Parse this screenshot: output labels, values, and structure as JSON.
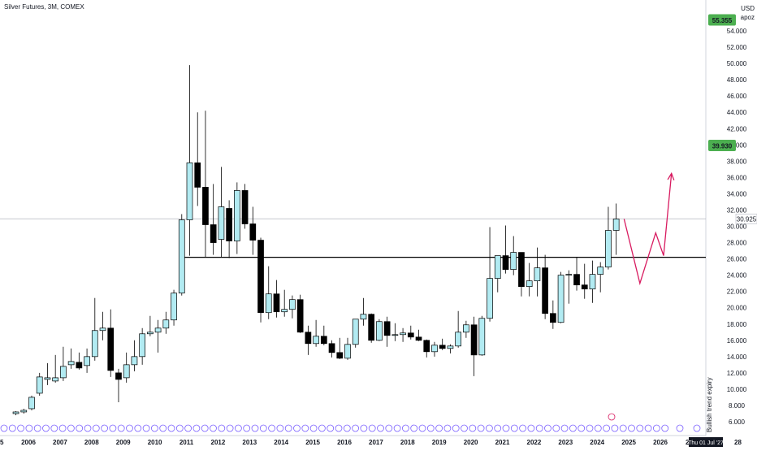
{
  "header": {
    "title": "Silver Futures, 3M, COMEX"
  },
  "currency": {
    "code": "USD",
    "label": "apoz"
  },
  "price_badges": {
    "top": "55.355",
    "mid": "39.930",
    "last": "30.925"
  },
  "colors": {
    "up_fill": "#b2ebf2",
    "down_fill": "#000000",
    "badge": "#4caf50",
    "projection": "#d81b60",
    "level": "#000000",
    "last_line": "#b2b5be"
  },
  "chart_data": {
    "type": "candlestick",
    "title": "Silver Futures, 3M, COMEX",
    "ylim": [
      5.5,
      56.5
    ],
    "y_ticks": [
      6,
      8,
      10,
      12,
      14,
      16,
      18,
      20,
      22,
      24,
      26,
      28,
      30,
      32,
      34,
      36,
      38,
      40,
      42,
      44,
      46,
      48,
      50,
      52,
      54
    ],
    "y_tick_labels": [
      "6.000",
      "8.000",
      "10.000",
      "12.000",
      "14.000",
      "16.000",
      "18.000",
      "20.000",
      "22.000",
      "24.000",
      "26.000",
      "28.000",
      "30.000",
      "32.000",
      "34.000",
      "36.000",
      "38.000",
      "40.000",
      "42.000",
      "44.000",
      "46.000",
      "48.000",
      "50.000",
      "52.000",
      "54.000"
    ],
    "x_ticks": [
      {
        "label": "2006",
        "year": 2006
      },
      {
        "label": "2007",
        "year": 2007
      },
      {
        "label": "2008",
        "year": 2008
      },
      {
        "label": "2009",
        "year": 2009
      },
      {
        "label": "2010",
        "year": 2010
      },
      {
        "label": "2011",
        "year": 2011
      },
      {
        "label": "2012",
        "year": 2012
      },
      {
        "label": "2013",
        "year": 2013
      },
      {
        "label": "2014",
        "year": 2014
      },
      {
        "label": "2015",
        "year": 2015
      },
      {
        "label": "2016",
        "year": 2016
      },
      {
        "label": "2017",
        "year": 2017
      },
      {
        "label": "2018",
        "year": 2018
      },
      {
        "label": "2019",
        "year": 2019
      },
      {
        "label": "2020",
        "year": 2020
      },
      {
        "label": "2021",
        "year": 2021
      },
      {
        "label": "2022",
        "year": 2022
      },
      {
        "label": "2023",
        "year": 2023
      },
      {
        "label": "2024",
        "year": 2024
      },
      {
        "label": "2025",
        "year": 2025
      },
      {
        "label": "2026",
        "year": 2026
      }
    ],
    "candles": [
      {
        "date": "2005-07",
        "o": 7.0,
        "h": 7.3,
        "l": 6.8,
        "c": 7.2
      },
      {
        "date": "2005-10",
        "o": 7.2,
        "h": 7.6,
        "l": 7.0,
        "c": 7.4
      },
      {
        "date": "2006-01",
        "o": 7.6,
        "h": 9.2,
        "l": 7.4,
        "c": 9.0
      },
      {
        "date": "2006-04",
        "o": 9.5,
        "h": 12.0,
        "l": 9.2,
        "c": 11.5
      },
      {
        "date": "2006-07",
        "o": 11.2,
        "h": 13.2,
        "l": 10.5,
        "c": 11.4
      },
      {
        "date": "2006-10",
        "o": 11.0,
        "h": 14.2,
        "l": 10.8,
        "c": 11.4
      },
      {
        "date": "2007-01",
        "o": 11.4,
        "h": 15.2,
        "l": 11.0,
        "c": 12.8
      },
      {
        "date": "2007-04",
        "o": 13.0,
        "h": 15.0,
        "l": 12.5,
        "c": 13.4
      },
      {
        "date": "2007-07",
        "o": 13.3,
        "h": 14.5,
        "l": 12.4,
        "c": 12.6
      },
      {
        "date": "2007-10",
        "o": 12.9,
        "h": 15.0,
        "l": 12.0,
        "c": 14.0
      },
      {
        "date": "2008-01",
        "o": 14.0,
        "h": 21.2,
        "l": 13.5,
        "c": 17.2
      },
      {
        "date": "2008-04",
        "o": 17.2,
        "h": 19.5,
        "l": 16.0,
        "c": 17.5
      },
      {
        "date": "2008-07",
        "o": 17.5,
        "h": 19.8,
        "l": 11.5,
        "c": 12.3
      },
      {
        "date": "2008-10",
        "o": 12.0,
        "h": 12.5,
        "l": 8.4,
        "c": 11.2
      },
      {
        "date": "2009-01",
        "o": 11.4,
        "h": 14.5,
        "l": 10.8,
        "c": 13.0
      },
      {
        "date": "2009-04",
        "o": 13.0,
        "h": 16.0,
        "l": 12.2,
        "c": 14.0
      },
      {
        "date": "2009-07",
        "o": 14.0,
        "h": 17.5,
        "l": 13.0,
        "c": 16.8
      },
      {
        "date": "2009-10",
        "o": 16.8,
        "h": 19.0,
        "l": 16.5,
        "c": 17.0
      },
      {
        "date": "2010-01",
        "o": 17.0,
        "h": 18.5,
        "l": 14.5,
        "c": 17.5
      },
      {
        "date": "2010-04",
        "o": 17.5,
        "h": 19.5,
        "l": 16.8,
        "c": 18.5
      },
      {
        "date": "2010-07",
        "o": 18.5,
        "h": 22.2,
        "l": 17.8,
        "c": 21.8
      },
      {
        "date": "2010-10",
        "o": 21.8,
        "h": 31.5,
        "l": 21.5,
        "c": 30.8
      },
      {
        "date": "2011-01",
        "o": 30.8,
        "h": 49.8,
        "l": 26.4,
        "c": 37.8
      },
      {
        "date": "2011-04",
        "o": 37.8,
        "h": 44.0,
        "l": 32.5,
        "c": 34.8
      },
      {
        "date": "2011-07",
        "o": 34.8,
        "h": 44.2,
        "l": 26.2,
        "c": 30.2
      },
      {
        "date": "2011-10",
        "o": 30.2,
        "h": 35.2,
        "l": 26.5,
        "c": 28.0
      },
      {
        "date": "2012-01",
        "o": 28.4,
        "h": 37.3,
        "l": 26.2,
        "c": 32.4
      },
      {
        "date": "2012-04",
        "o": 32.2,
        "h": 33.2,
        "l": 26.1,
        "c": 28.2
      },
      {
        "date": "2012-07",
        "o": 28.2,
        "h": 35.4,
        "l": 26.6,
        "c": 34.4
      },
      {
        "date": "2012-10",
        "o": 34.4,
        "h": 35.2,
        "l": 29.7,
        "c": 30.3
      },
      {
        "date": "2013-01",
        "o": 30.3,
        "h": 32.4,
        "l": 26.5,
        "c": 28.3
      },
      {
        "date": "2013-04",
        "o": 28.3,
        "h": 28.6,
        "l": 18.2,
        "c": 19.4
      },
      {
        "date": "2013-07",
        "o": 19.4,
        "h": 25.1,
        "l": 18.6,
        "c": 21.7
      },
      {
        "date": "2013-10",
        "o": 21.7,
        "h": 23.4,
        "l": 18.8,
        "c": 19.5
      },
      {
        "date": "2014-01",
        "o": 19.5,
        "h": 22.2,
        "l": 18.9,
        "c": 19.8
      },
      {
        "date": "2014-04",
        "o": 19.8,
        "h": 21.5,
        "l": 18.7,
        "c": 21.0
      },
      {
        "date": "2014-07",
        "o": 21.0,
        "h": 21.6,
        "l": 16.9,
        "c": 17.0
      },
      {
        "date": "2014-10",
        "o": 17.0,
        "h": 17.8,
        "l": 14.2,
        "c": 15.6
      },
      {
        "date": "2015-01",
        "o": 15.6,
        "h": 18.5,
        "l": 15.2,
        "c": 16.5
      },
      {
        "date": "2015-04",
        "o": 16.5,
        "h": 17.8,
        "l": 15.4,
        "c": 15.6
      },
      {
        "date": "2015-07",
        "o": 15.6,
        "h": 16.0,
        "l": 13.9,
        "c": 14.5
      },
      {
        "date": "2015-10",
        "o": 14.5,
        "h": 16.3,
        "l": 13.7,
        "c": 13.8
      },
      {
        "date": "2016-01",
        "o": 13.8,
        "h": 16.3,
        "l": 13.6,
        "c": 15.5
      },
      {
        "date": "2016-04",
        "o": 15.5,
        "h": 18.6,
        "l": 15.1,
        "c": 18.6
      },
      {
        "date": "2016-07",
        "o": 18.6,
        "h": 21.2,
        "l": 17.8,
        "c": 19.2
      },
      {
        "date": "2016-10",
        "o": 19.2,
        "h": 19.3,
        "l": 15.7,
        "c": 16.0
      },
      {
        "date": "2017-01",
        "o": 16.0,
        "h": 18.6,
        "l": 15.9,
        "c": 18.3
      },
      {
        "date": "2017-04",
        "o": 18.3,
        "h": 18.9,
        "l": 15.2,
        "c": 16.6
      },
      {
        "date": "2017-07",
        "o": 16.6,
        "h": 18.1,
        "l": 15.9,
        "c": 16.7
      },
      {
        "date": "2017-10",
        "o": 16.7,
        "h": 17.5,
        "l": 15.8,
        "c": 16.9
      },
      {
        "date": "2018-01",
        "o": 16.9,
        "h": 17.8,
        "l": 16.1,
        "c": 16.4
      },
      {
        "date": "2018-04",
        "o": 16.4,
        "h": 17.3,
        "l": 15.9,
        "c": 16.0
      },
      {
        "date": "2018-07",
        "o": 16.0,
        "h": 16.1,
        "l": 13.9,
        "c": 14.6
      },
      {
        "date": "2018-10",
        "o": 14.6,
        "h": 15.8,
        "l": 14.0,
        "c": 15.4
      },
      {
        "date": "2019-01",
        "o": 15.4,
        "h": 16.2,
        "l": 14.8,
        "c": 15.0
      },
      {
        "date": "2019-04",
        "o": 15.0,
        "h": 15.5,
        "l": 14.4,
        "c": 15.3
      },
      {
        "date": "2019-07",
        "o": 15.3,
        "h": 19.6,
        "l": 15.1,
        "c": 17.0
      },
      {
        "date": "2019-10",
        "o": 17.0,
        "h": 18.4,
        "l": 16.3,
        "c": 17.9
      },
      {
        "date": "2020-01",
        "o": 17.9,
        "h": 18.9,
        "l": 11.6,
        "c": 14.2
      },
      {
        "date": "2020-04",
        "o": 14.2,
        "h": 19.0,
        "l": 14.1,
        "c": 18.7
      },
      {
        "date": "2020-07",
        "o": 18.7,
        "h": 29.9,
        "l": 18.3,
        "c": 23.6
      },
      {
        "date": "2020-10",
        "o": 23.6,
        "h": 26.3,
        "l": 21.9,
        "c": 26.4
      },
      {
        "date": "2021-01",
        "o": 26.4,
        "h": 30.1,
        "l": 24.2,
        "c": 24.7
      },
      {
        "date": "2021-04",
        "o": 24.7,
        "h": 28.8,
        "l": 24.0,
        "c": 26.8
      },
      {
        "date": "2021-07",
        "o": 26.8,
        "h": 26.8,
        "l": 21.4,
        "c": 22.6
      },
      {
        "date": "2021-10",
        "o": 22.6,
        "h": 25.5,
        "l": 21.4,
        "c": 23.3
      },
      {
        "date": "2022-01",
        "o": 23.3,
        "h": 27.4,
        "l": 21.4,
        "c": 24.9
      },
      {
        "date": "2022-04",
        "o": 24.9,
        "h": 26.5,
        "l": 18.6,
        "c": 19.3
      },
      {
        "date": "2022-07",
        "o": 19.3,
        "h": 20.9,
        "l": 17.4,
        "c": 18.2
      },
      {
        "date": "2022-10",
        "o": 18.2,
        "h": 24.4,
        "l": 18.1,
        "c": 24.0
      },
      {
        "date": "2023-01",
        "o": 24.0,
        "h": 24.6,
        "l": 20.5,
        "c": 24.1
      },
      {
        "date": "2023-04",
        "o": 24.1,
        "h": 26.2,
        "l": 22.1,
        "c": 22.8
      },
      {
        "date": "2023-07",
        "o": 22.8,
        "h": 25.4,
        "l": 21.1,
        "c": 22.3
      },
      {
        "date": "2023-10",
        "o": 22.3,
        "h": 25.8,
        "l": 20.6,
        "c": 24.1
      },
      {
        "date": "2024-01",
        "o": 24.1,
        "h": 25.6,
        "l": 21.9,
        "c": 25.0
      },
      {
        "date": "2024-04",
        "o": 25.0,
        "h": 32.4,
        "l": 24.7,
        "c": 29.5
      },
      {
        "date": "2024-07",
        "o": 29.5,
        "h": 32.8,
        "l": 26.5,
        "c": 30.9
      }
    ],
    "support_level": {
      "value": 26.2,
      "from": "2011-01",
      "to": "2026-12"
    },
    "projection_path": [
      {
        "date": "2024-10",
        "value": 30.9
      },
      {
        "date": "2025-04",
        "value": 23.0
      },
      {
        "date": "2025-10",
        "value": 29.2
      },
      {
        "date": "2026-01",
        "value": 26.4
      },
      {
        "date": "2026-04",
        "value": 36.5
      }
    ],
    "last_price": 30.925,
    "annotations": {
      "vertical_text": "Bullish trend expiry",
      "cursor_date": "Thu 01 Jul '27",
      "left_edge": "5",
      "right_edge": "28",
      "partial_year": "20"
    }
  }
}
